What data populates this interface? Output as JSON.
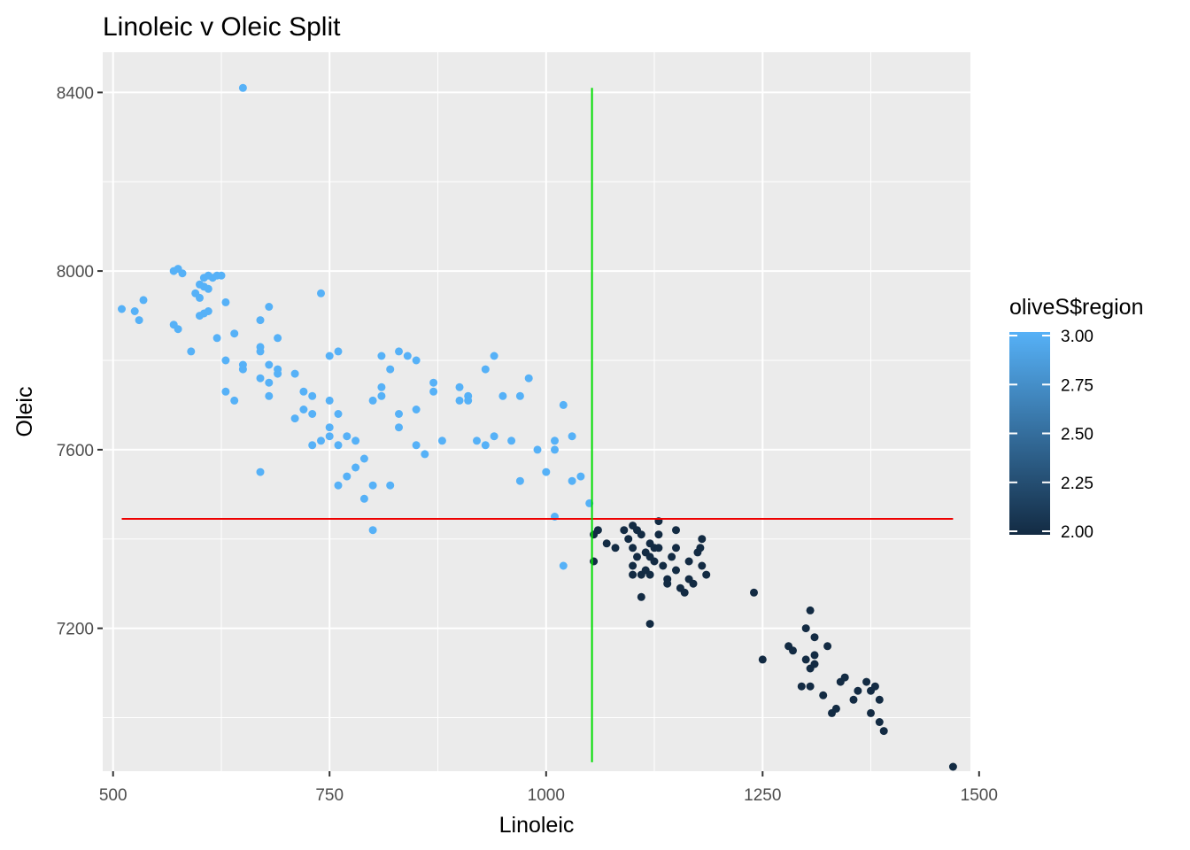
{
  "chart_data": {
    "type": "scatter",
    "title": "Linoleic v Oleic Split",
    "xlabel": "Linoleic",
    "ylabel": "Oleic",
    "xlim": [
      488,
      1490
    ],
    "ylim": [
      6880,
      8490
    ],
    "x_ticks": [
      500,
      750,
      1000,
      1250,
      1500
    ],
    "x_minor": [
      625,
      875,
      1125,
      1375
    ],
    "y_ticks": [
      7200,
      7600,
      8000,
      8400
    ],
    "y_minor": [
      7000,
      7400,
      7800,
      8200
    ],
    "x_tick_labels": [
      "500",
      "750",
      "1000",
      "1250",
      "1500"
    ],
    "y_tick_labels": [
      "7200",
      "7600",
      "8000",
      "8400"
    ],
    "grid": true,
    "panel_background": "#ebebeb",
    "grid_color": "#ffffff",
    "vline": {
      "x": 1053,
      "y_from": 6900,
      "y_to": 8410,
      "color": "#00dd00"
    },
    "hline": {
      "y": 7445,
      "x_from": 510,
      "x_to": 1470,
      "color": "#ee0000"
    },
    "legend": {
      "title": "oliveS$region",
      "placement": "right",
      "low_color": "#132b43",
      "high_color": "#56b1f7",
      "min": 2.0,
      "max": 3.0,
      "ticks": [
        3.0,
        2.75,
        2.5,
        2.25,
        2.0
      ],
      "labels": [
        "3.00",
        "2.75",
        "2.50",
        "2.25",
        "2.00"
      ]
    },
    "series": [
      {
        "region": 3,
        "points": [
          [
            510,
            7915
          ],
          [
            525,
            7910
          ],
          [
            530,
            7890
          ],
          [
            535,
            7935
          ],
          [
            570,
            8000
          ],
          [
            570,
            7880
          ],
          [
            575,
            8005
          ],
          [
            580,
            7995
          ],
          [
            575,
            7870
          ],
          [
            590,
            7820
          ],
          [
            595,
            7950
          ],
          [
            600,
            7900
          ],
          [
            600,
            7970
          ],
          [
            605,
            7965
          ],
          [
            600,
            7940
          ],
          [
            605,
            7985
          ],
          [
            610,
            7990
          ],
          [
            610,
            7960
          ],
          [
            605,
            7905
          ],
          [
            610,
            7910
          ],
          [
            615,
            7985
          ],
          [
            620,
            7990
          ],
          [
            625,
            7990
          ],
          [
            620,
            7850
          ],
          [
            630,
            7930
          ],
          [
            630,
            7800
          ],
          [
            630,
            7730
          ],
          [
            640,
            7860
          ],
          [
            640,
            7710
          ],
          [
            650,
            8410
          ],
          [
            650,
            7790
          ],
          [
            650,
            7780
          ],
          [
            670,
            7890
          ],
          [
            670,
            7820
          ],
          [
            670,
            7830
          ],
          [
            670,
            7760
          ],
          [
            670,
            7550
          ],
          [
            680,
            7920
          ],
          [
            680,
            7790
          ],
          [
            680,
            7750
          ],
          [
            680,
            7720
          ],
          [
            690,
            7850
          ],
          [
            690,
            7780
          ],
          [
            690,
            7770
          ],
          [
            710,
            7770
          ],
          [
            710,
            7670
          ],
          [
            720,
            7730
          ],
          [
            720,
            7690
          ],
          [
            730,
            7720
          ],
          [
            730,
            7680
          ],
          [
            730,
            7610
          ],
          [
            740,
            7950
          ],
          [
            740,
            7620
          ],
          [
            750,
            7810
          ],
          [
            750,
            7710
          ],
          [
            750,
            7650
          ],
          [
            750,
            7630
          ],
          [
            760,
            7820
          ],
          [
            760,
            7680
          ],
          [
            760,
            7610
          ],
          [
            760,
            7520
          ],
          [
            770,
            7630
          ],
          [
            770,
            7540
          ],
          [
            780,
            7620
          ],
          [
            780,
            7560
          ],
          [
            790,
            7580
          ],
          [
            790,
            7490
          ],
          [
            800,
            7710
          ],
          [
            800,
            7520
          ],
          [
            800,
            7420
          ],
          [
            810,
            7810
          ],
          [
            810,
            7740
          ],
          [
            810,
            7720
          ],
          [
            820,
            7780
          ],
          [
            820,
            7520
          ],
          [
            830,
            7820
          ],
          [
            830,
            7680
          ],
          [
            830,
            7650
          ],
          [
            840,
            7810
          ],
          [
            850,
            7800
          ],
          [
            850,
            7690
          ],
          [
            850,
            7610
          ],
          [
            860,
            7590
          ],
          [
            870,
            7750
          ],
          [
            870,
            7730
          ],
          [
            880,
            7620
          ],
          [
            900,
            7740
          ],
          [
            900,
            7710
          ],
          [
            910,
            7720
          ],
          [
            910,
            7710
          ],
          [
            920,
            7620
          ],
          [
            930,
            7780
          ],
          [
            930,
            7610
          ],
          [
            940,
            7810
          ],
          [
            940,
            7630
          ],
          [
            950,
            7720
          ],
          [
            960,
            7620
          ],
          [
            970,
            7720
          ],
          [
            970,
            7530
          ],
          [
            980,
            7760
          ],
          [
            990,
            7600
          ],
          [
            1000,
            7550
          ],
          [
            1010,
            7620
          ],
          [
            1010,
            7600
          ],
          [
            1010,
            7450
          ],
          [
            1020,
            7700
          ],
          [
            1020,
            7340
          ],
          [
            1030,
            7630
          ],
          [
            1030,
            7530
          ],
          [
            1040,
            7540
          ],
          [
            1050,
            7480
          ]
        ]
      },
      {
        "region": 2,
        "points": [
          [
            1055,
            7410
          ],
          [
            1060,
            7420
          ],
          [
            1055,
            7350
          ],
          [
            1070,
            7390
          ],
          [
            1080,
            7380
          ],
          [
            1090,
            7420
          ],
          [
            1095,
            7400
          ],
          [
            1100,
            7430
          ],
          [
            1100,
            7380
          ],
          [
            1100,
            7340
          ],
          [
            1100,
            7320
          ],
          [
            1105,
            7420
          ],
          [
            1110,
            7410
          ],
          [
            1105,
            7360
          ],
          [
            1110,
            7320
          ],
          [
            1110,
            7270
          ],
          [
            1115,
            7370
          ],
          [
            1115,
            7330
          ],
          [
            1120,
            7390
          ],
          [
            1120,
            7360
          ],
          [
            1120,
            7320
          ],
          [
            1120,
            7210
          ],
          [
            1125,
            7380
          ],
          [
            1125,
            7350
          ],
          [
            1130,
            7440
          ],
          [
            1130,
            7410
          ],
          [
            1130,
            7380
          ],
          [
            1135,
            7340
          ],
          [
            1140,
            7310
          ],
          [
            1140,
            7300
          ],
          [
            1145,
            7360
          ],
          [
            1150,
            7420
          ],
          [
            1150,
            7380
          ],
          [
            1150,
            7330
          ],
          [
            1155,
            7290
          ],
          [
            1160,
            7280
          ],
          [
            1165,
            7350
          ],
          [
            1165,
            7310
          ],
          [
            1170,
            7300
          ],
          [
            1175,
            7370
          ],
          [
            1178,
            7380
          ],
          [
            1180,
            7400
          ],
          [
            1180,
            7340
          ],
          [
            1185,
            7320
          ],
          [
            1240,
            7280
          ],
          [
            1250,
            7130
          ],
          [
            1280,
            7160
          ],
          [
            1285,
            7150
          ],
          [
            1295,
            7070
          ],
          [
            1300,
            7200
          ],
          [
            1300,
            7130
          ],
          [
            1305,
            7240
          ],
          [
            1305,
            7110
          ],
          [
            1305,
            7070
          ],
          [
            1310,
            7180
          ],
          [
            1310,
            7140
          ],
          [
            1310,
            7120
          ],
          [
            1320,
            7050
          ],
          [
            1325,
            7160
          ],
          [
            1330,
            7010
          ],
          [
            1335,
            7020
          ],
          [
            1340,
            7080
          ],
          [
            1345,
            7090
          ],
          [
            1355,
            7040
          ],
          [
            1360,
            7060
          ],
          [
            1370,
            7080
          ],
          [
            1375,
            7010
          ],
          [
            1375,
            7060
          ],
          [
            1380,
            7070
          ],
          [
            1385,
            6990
          ],
          [
            1385,
            7040
          ],
          [
            1390,
            6970
          ],
          [
            1470,
            6890
          ]
        ]
      }
    ]
  }
}
